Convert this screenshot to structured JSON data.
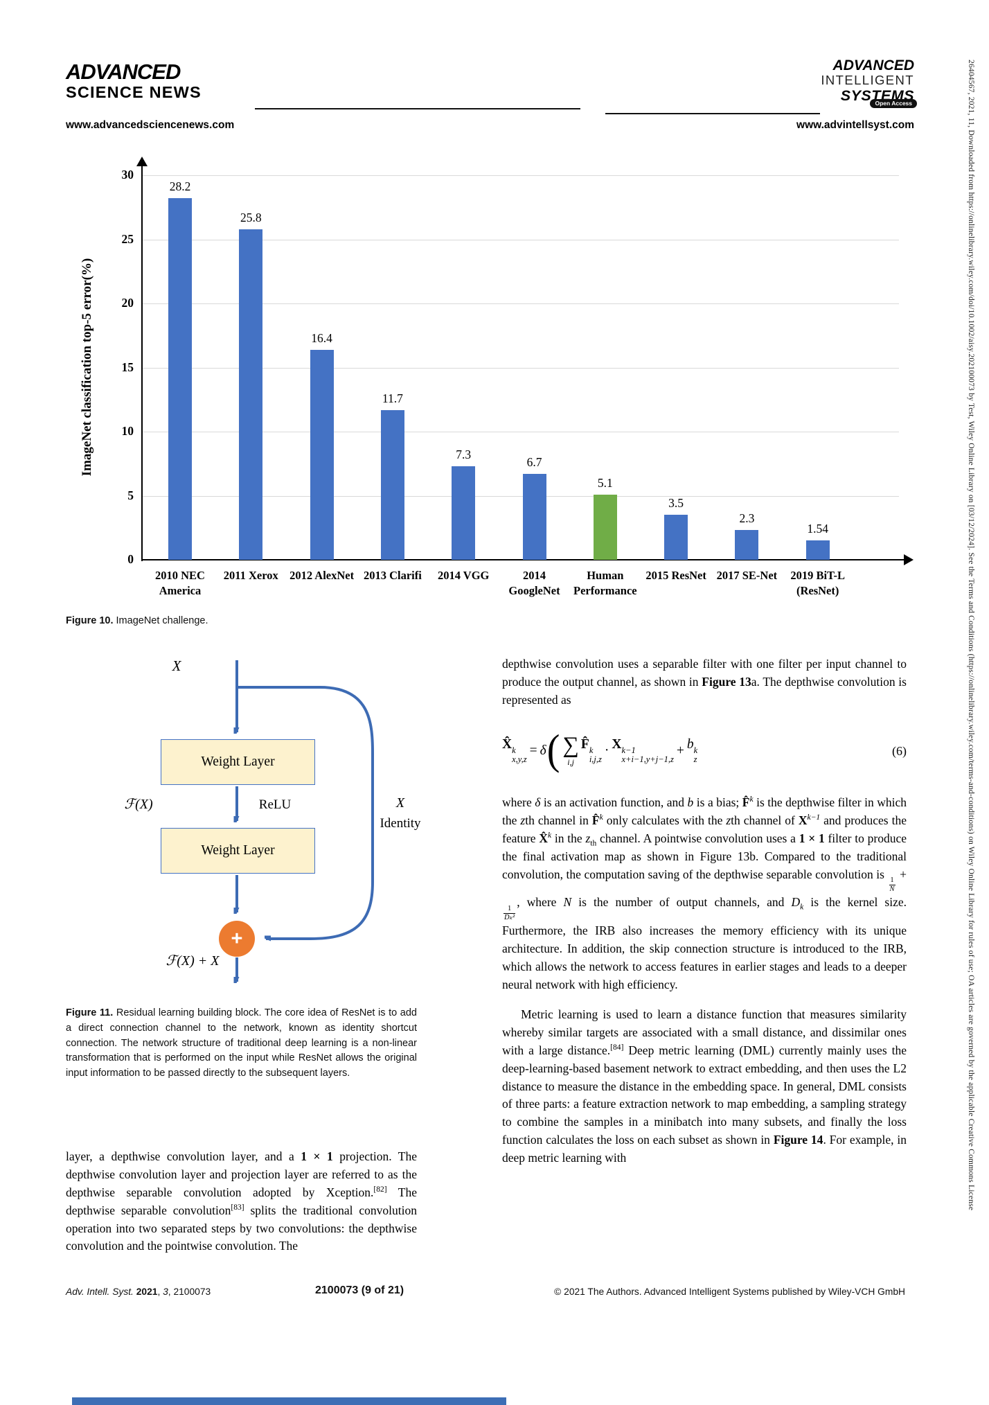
{
  "header": {
    "left_logo_line1": "ADVANCED",
    "left_logo_line2": "SCIENCE NEWS",
    "left_url": "www.advancedsciencenews.com",
    "right_logo_line1": "ADVANCED",
    "right_logo_line2": "INTELLIGENT",
    "right_logo_line3": "SYSTEMS",
    "right_logo_badge": "Open Access",
    "right_url": "www.advintellsyst.com"
  },
  "chart_data": {
    "type": "bar",
    "title": "",
    "ylabel": "ImageNet classification top-5 error(%)",
    "xlabel": "",
    "ylim": [
      0,
      30
    ],
    "yticks": [
      0,
      5,
      10,
      15,
      20,
      25,
      30
    ],
    "grid": "horizontal",
    "categories": [
      "2010 NEC\nAmerica",
      "2011 Xerox",
      "2012 AlexNet",
      "2013 Clarifi",
      "2014 VGG",
      "2014\nGoogleNet",
      "Human\nPerformance",
      "2015 ResNet",
      "2017 SE-Net",
      "2019 BiT-L\n(ResNet)"
    ],
    "values": [
      28.2,
      25.8,
      16.4,
      11.7,
      7.3,
      6.7,
      5.1,
      3.5,
      2.3,
      1.54
    ],
    "value_labels": [
      "28.2",
      "25.8",
      "16.4",
      "11.7",
      "7.3",
      "6.7",
      "5.1",
      "3.5",
      "2.3",
      "1.54"
    ],
    "bar_colors": [
      "#4472C4",
      "#4472C4",
      "#4472C4",
      "#4472C4",
      "#4472C4",
      "#4472C4",
      "#70AD47",
      "#4472C4",
      "#4472C4",
      "#4472C4"
    ],
    "colors": {
      "blue": "#4472C4",
      "green": "#70AD47",
      "grid": "#D9D9D9"
    }
  },
  "figure10_caption": [
    {
      "t": "Figure 10.",
      "s": "b"
    },
    {
      "t": "  ImageNet challenge."
    }
  ],
  "figure11": {
    "x_top": "X",
    "weight_layer": "Weight Layer",
    "fx": "ℱ(X)",
    "relu": "ReLU",
    "x_right": "X",
    "identity": "Identity",
    "plus": "+",
    "output": "ℱ(X) + X",
    "caption": [
      {
        "t": "Figure 11.",
        "s": "b"
      },
      {
        "t": "  Residual learning building block. The core idea of ResNet is to add a direct connection channel to the network, known as identity shortcut connection. The network structure of traditional deep learning is a non-linear transformation that is performed on the input while ResNet allows the original input information to be passed directly to the subsequent layers."
      }
    ]
  },
  "left_column": {
    "paragraph": [
      {
        "t": "layer, a depthwise convolution layer, and a "
      },
      {
        "t": "1 × 1",
        "s": "b"
      },
      {
        "t": " projection. The depthwise convolution layer and projection layer are referred to as the depthwise separable convolution adopted by Xception."
      },
      {
        "t": "[82]",
        "s": "sup"
      },
      {
        "t": " The depthwise separable convolution"
      },
      {
        "t": "[83]",
        "s": "sup"
      },
      {
        "t": " splits the traditional convolution operation into two separated steps by two convolutions: the depthwise convolution and the pointwise convolution. The"
      }
    ]
  },
  "right_column": {
    "para1": [
      {
        "t": "depthwise convolution uses a separable filter with one filter per input channel to produce the output channel, as shown in "
      },
      {
        "t": "Figure 13",
        "s": "b"
      },
      {
        "t": "a. The depthwise convolution is represented as"
      }
    ],
    "equation": {
      "lhs_base": "X̂",
      "lhs_sup": "k",
      "lhs_sub": "x,y,z",
      "equals": "=",
      "delta": "δ",
      "lparen": "(",
      "sum": "∑",
      "sum_sub": "i,j",
      "f_base": "F̂",
      "f_sup": "k",
      "f_sub": "i,j,z",
      "dot": "·",
      "x_base": "X",
      "x_sup": "k−1",
      "x_sub": "x+i−1,y+j−1,z",
      "plus": "+",
      "b_base": "b",
      "b_sup": "k",
      "b_sub": "z",
      "number": "(6)"
    },
    "para2": [
      {
        "t": "where "
      },
      {
        "t": "δ",
        "s": "i"
      },
      {
        "t": " is an activation function, and "
      },
      {
        "t": "b",
        "s": "i"
      },
      {
        "t": " is a bias; "
      },
      {
        "t": "F̂",
        "s": "b"
      },
      {
        "t": "k",
        "s": "sup i"
      },
      {
        "t": " is the depthwise filter in which the "
      },
      {
        "t": "z",
        "s": "i"
      },
      {
        "t": "th channel in "
      },
      {
        "t": "F̂",
        "s": "b"
      },
      {
        "t": "k",
        "s": "sup i"
      },
      {
        "t": " only calculates with the "
      },
      {
        "t": "z",
        "s": "i"
      },
      {
        "t": "th channel of "
      },
      {
        "t": "X",
        "s": "b"
      },
      {
        "t": "k−1",
        "s": "sup i"
      },
      {
        "t": " and produces the feature "
      },
      {
        "t": "X̂",
        "s": "b"
      },
      {
        "t": "k",
        "s": "sup i"
      },
      {
        "t": " in the "
      },
      {
        "t": "z",
        "s": "i"
      },
      {
        "t": "th",
        "s": "sub"
      },
      {
        "t": " channel. A pointwise convolution uses a "
      },
      {
        "t": "1 × 1",
        "s": "b"
      },
      {
        "t": " filter to produce the final activation map as shown in Figure 13b. Compared to the traditional convolution, the computation saving of the depthwise separable convolution is "
      },
      {
        "s": "frac",
        "num": "1",
        "den": "N"
      },
      {
        "t": " + "
      },
      {
        "s": "frac",
        "num": "1",
        "den": "Dₖ²"
      },
      {
        "t": ", where "
      },
      {
        "t": "N",
        "s": "i"
      },
      {
        "t": " is the number of output channels, and "
      },
      {
        "t": "D",
        "s": "i"
      },
      {
        "t": "k",
        "s": "sub i"
      },
      {
        "t": " is the kernel size. Furthermore, the IRB also increases the memory efficiency with its unique architecture. In addition, the skip connection structure is introduced to the IRB, which allows the network to access features in earlier stages and leads to a deeper neural network with high efficiency."
      }
    ],
    "para3": [
      {
        "t": "Metric learning is used to learn a distance function that measures similarity whereby similar targets are associated with a small distance, and dissimilar ones with a large distance."
      },
      {
        "t": "[84]",
        "s": "sup"
      },
      {
        "t": " Deep metric learning (DML) currently mainly uses the deep-learning-based basement network to extract embedding, and then uses the L2 distance to measure the distance in the embedding space. In general, DML consists of three parts: a feature extraction network to map embedding, a sampling strategy to combine the samples in a minibatch into many subsets, and finally the loss function calculates the loss on each subset as shown in "
      },
      {
        "t": "Figure 14",
        "s": "b"
      },
      {
        "t": ". For example, in deep metric learning with"
      }
    ]
  },
  "footer": {
    "left": [
      {
        "t": "Adv. Intell. Syst. ",
        "s": "i"
      },
      {
        "t": "2021",
        "s": "b"
      },
      {
        "t": ", "
      },
      {
        "t": "3",
        "s": "i"
      },
      {
        "t": ", 2100073"
      }
    ],
    "center": "2100073 (9 of 21)",
    "right": "© 2021 The Authors. Advanced Intelligent Systems published by Wiley-VCH GmbH"
  },
  "sidebar_text": "26404567, 2021, 11, Downloaded from https://onlinelibrary.wiley.com/doi/10.1002/aisy.202100073 by Test, Wiley Online Library on [03/12/2024]. See the Terms and Conditions (https://onlinelibrary.wiley.com/terms-and-conditions) on Wiley Online Library for rules of use; OA articles are governed by the applicable Creative Commons License"
}
